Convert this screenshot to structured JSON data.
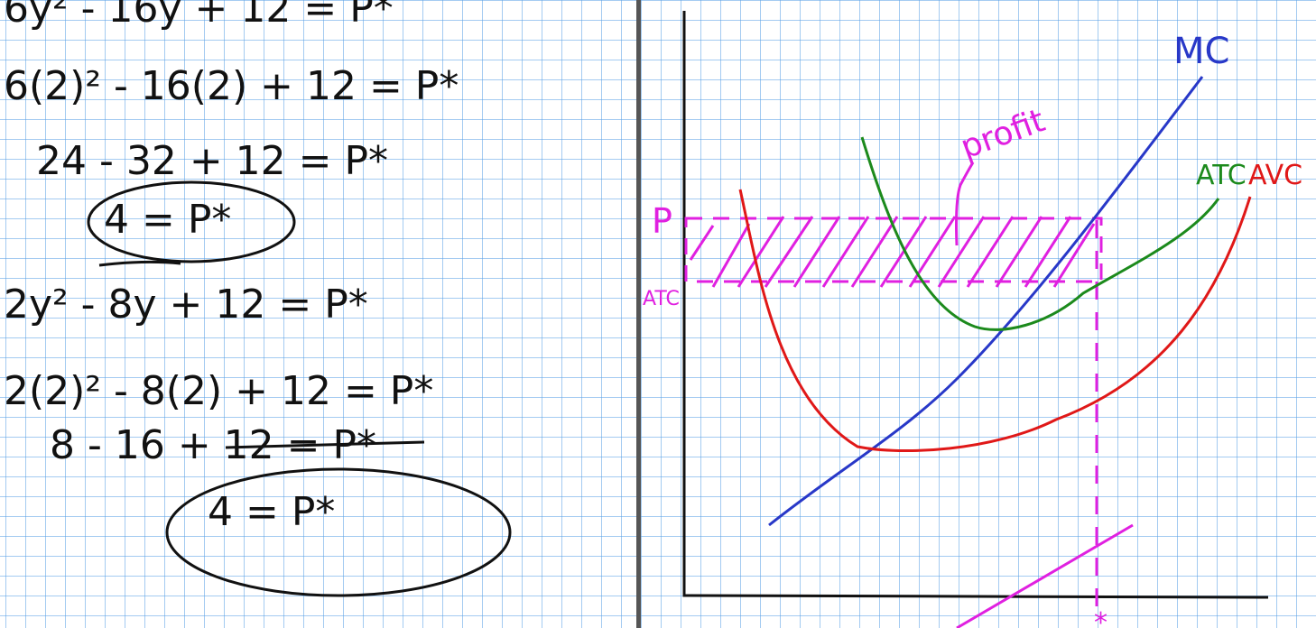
{
  "colors": {
    "ink": "#111111",
    "mc": "#2838c8",
    "atc": "#1c8a1c",
    "avc": "#e01818",
    "highlight": "#e020e0",
    "grid": "#5aa0e6"
  },
  "left": {
    "lines": [
      "6y² - 16y + 12 = P*",
      "6(2)² - 16(2) + 12 = P*",
      "24 - 32 + 12 = P*",
      "4 = P*",
      "2y² - 8y + 12 = P*",
      "2(2)² - 8(2) + 12 = P*",
      "8 - 16 + 12 = P*",
      "4   = P*"
    ]
  },
  "right": {
    "labels": {
      "mc": "MC",
      "atc": "ATC",
      "avc": "AVC",
      "profit": "profit",
      "p": "P",
      "atc_axis": "ATC",
      "qstar": "*"
    }
  }
}
